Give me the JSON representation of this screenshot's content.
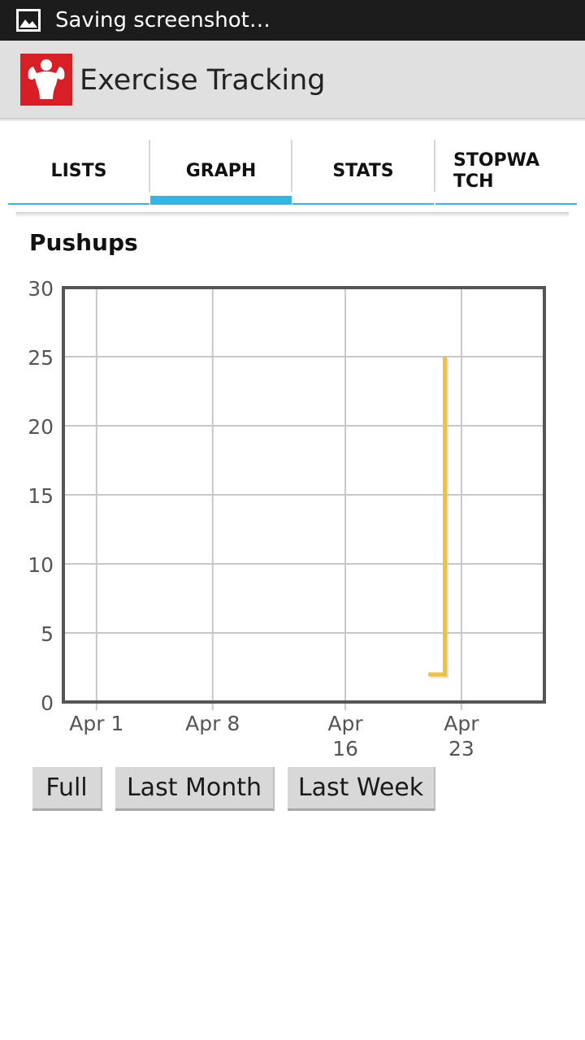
{
  "status_bar": {
    "text": "Saving screenshot…",
    "icon": "image-icon"
  },
  "action_bar": {
    "title": "Exercise Tracking",
    "icon": "bodybuilder-icon"
  },
  "tabs": [
    {
      "label": "LISTS",
      "selected": false
    },
    {
      "label": "GRAPH",
      "selected": true
    },
    {
      "label": "STATS",
      "selected": false
    },
    {
      "label": "STOPWA\nTCH",
      "selected": false
    }
  ],
  "graph": {
    "title": "Pushups"
  },
  "buttons": {
    "full": "Full",
    "last_month": "Last Month",
    "last_week": "Last Week"
  },
  "colors": {
    "accent": "#33b5e5",
    "series": "#f0c040",
    "brand": "#d81f26"
  },
  "chart_data": {
    "type": "line",
    "title": "Pushups",
    "xlabel": "",
    "ylabel": "",
    "ylim": [
      0,
      30
    ],
    "xlim": [
      "2013-03-30",
      "2013-04-28"
    ],
    "y_ticks": [
      "0",
      "5",
      "10",
      "15",
      "20",
      "25",
      "30"
    ],
    "x_ticks": [
      {
        "date": "2013-04-01",
        "label": "Apr 1"
      },
      {
        "date": "2013-04-08",
        "label": "Apr 8"
      },
      {
        "date": "2013-04-16",
        "label": "Apr\n16"
      },
      {
        "date": "2013-04-23",
        "label": "Apr\n23"
      }
    ],
    "grid": true,
    "series": [
      {
        "points": [
          {
            "x": "2013-04-21",
            "y": 2
          },
          {
            "x": "2013-04-22",
            "y": 2
          },
          {
            "x": "2013-04-22",
            "y": 25
          }
        ]
      }
    ]
  }
}
